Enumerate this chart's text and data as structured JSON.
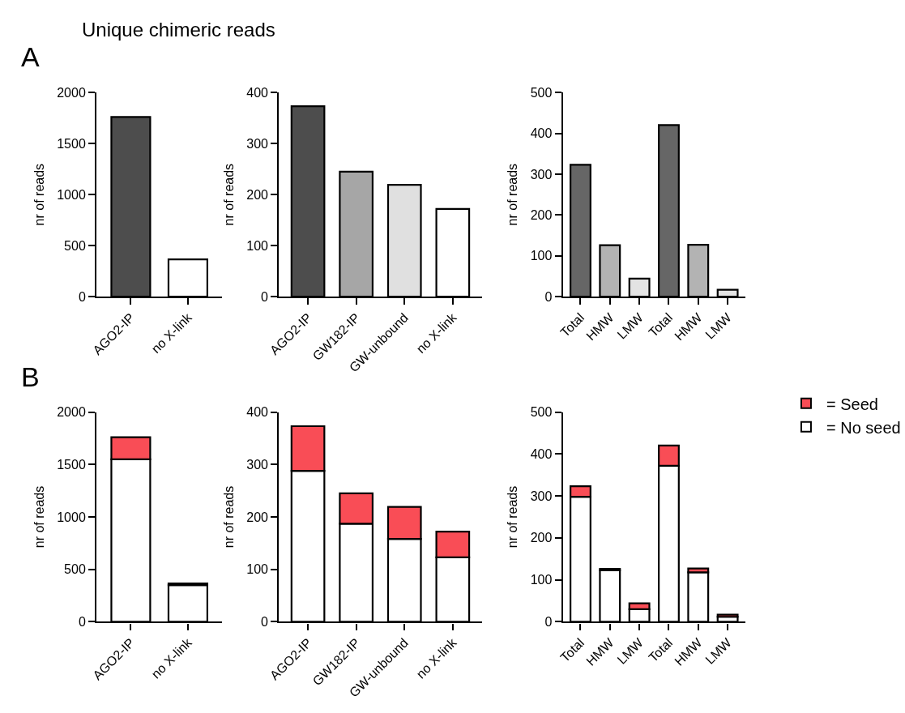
{
  "chart_data": [
    {
      "type": "bar",
      "title": "Unique chimeric reads",
      "annotations": [
        "A"
      ],
      "ylabel": "nr of reads",
      "categories": [
        "AGO2-IP",
        "no X-link"
      ],
      "values": [
        1760,
        365
      ],
      "colors": [
        "#4d4d4d",
        "#ffffff"
      ],
      "ylim": [
        0,
        2000
      ],
      "yticks": [
        0,
        500,
        1000,
        1500,
        2000
      ]
    },
    {
      "type": "bar",
      "ylabel": "nr of reads",
      "categories": [
        "AGO2-IP",
        "GW182-IP",
        "GW-unbound",
        "no X-link"
      ],
      "values": [
        373,
        245,
        219,
        172
      ],
      "colors": [
        "#4d4d4d",
        "#a6a6a6",
        "#e0e0e0",
        "#ffffff"
      ],
      "ylim": [
        0,
        400
      ],
      "yticks": [
        0,
        100,
        200,
        300,
        400
      ]
    },
    {
      "type": "bar",
      "ylabel": "nr of reads",
      "categories": [
        "Total",
        "HMW",
        "LMW",
        "Total",
        "HMW",
        "LMW"
      ],
      "values": [
        323,
        126,
        44,
        420,
        127,
        17
      ],
      "colors": [
        "#666666",
        "#b3b3b3",
        "#e3e3e3",
        "#666666",
        "#b3b3b3",
        "#e3e3e3"
      ],
      "ylim": [
        0,
        500
      ],
      "yticks": [
        0,
        100,
        200,
        300,
        400,
        500
      ]
    },
    {
      "type": "bar",
      "stacked": true,
      "annotations": [
        "B"
      ],
      "ylabel": "nr of reads",
      "categories": [
        "AGO2-IP",
        "no X-link"
      ],
      "series": [
        {
          "color": "#ffffff",
          "values": [
            1550,
            350
          ]
        },
        {
          "color": "#f94d56",
          "values": [
            210,
            15
          ]
        }
      ],
      "ylim": [
        0,
        2000
      ],
      "yticks": [
        0,
        500,
        1000,
        1500,
        2000
      ]
    },
    {
      "type": "bar",
      "stacked": true,
      "ylabel": "nr of reads",
      "categories": [
        "AGO2-IP",
        "GW182-IP",
        "GW-unbound",
        "no X-link"
      ],
      "series": [
        {
          "color": "#ffffff",
          "values": [
            288,
            187,
            158,
            123
          ]
        },
        {
          "color": "#f94d56",
          "values": [
            85,
            58,
            61,
            49
          ]
        }
      ],
      "ylim": [
        0,
        400
      ],
      "yticks": [
        0,
        100,
        200,
        300,
        400
      ]
    },
    {
      "type": "bar",
      "stacked": true,
      "ylabel": "nr of reads",
      "categories": [
        "Total",
        "HMW",
        "LMW",
        "Total",
        "HMW",
        "LMW"
      ],
      "series": [
        {
          "name": "= No seed",
          "color": "#ffffff",
          "values": [
            298,
            123,
            30,
            372,
            118,
            12
          ]
        },
        {
          "name": "= Seed",
          "color": "#f94d56",
          "values": [
            25,
            3,
            14,
            48,
            9,
            5
          ]
        }
      ],
      "ylim": [
        0,
        500
      ],
      "yticks": [
        0,
        100,
        200,
        300,
        400,
        500
      ],
      "legend": "top right"
    }
  ]
}
